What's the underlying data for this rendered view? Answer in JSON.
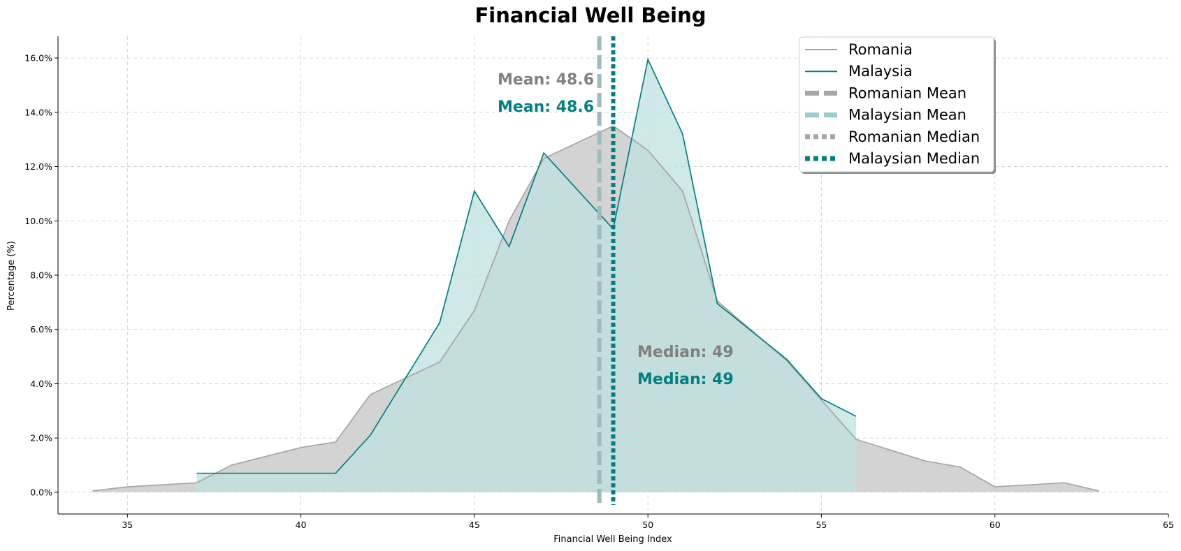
{
  "chart_data": {
    "type": "area",
    "title": "Financial Well Being",
    "xlabel": "Financial Well Being Index",
    "ylabel": "Percentage (%)",
    "xlim": [
      33,
      65
    ],
    "ylim": [
      -0.8,
      16.8
    ],
    "x_ticks": [
      35,
      40,
      45,
      50,
      55,
      60,
      65
    ],
    "y_ticks": [
      0,
      2,
      4,
      6,
      8,
      10,
      12,
      14,
      16
    ],
    "y_tick_format": "percent_1dp",
    "grid": true,
    "legend_placement": "top-right",
    "series": [
      {
        "name": "Romania",
        "color": "#a6a6a6",
        "fill": "#d3d3d3",
        "x": [
          34,
          35,
          37,
          38,
          40,
          41,
          42,
          44,
          45,
          46,
          47,
          49,
          50,
          51,
          52,
          54,
          55,
          56,
          58,
          59,
          60,
          62,
          63
        ],
        "y": [
          0.05,
          0.2,
          0.35,
          1.0,
          1.65,
          1.85,
          3.6,
          4.8,
          6.7,
          10.0,
          12.3,
          13.5,
          12.6,
          11.1,
          7.05,
          4.85,
          3.4,
          1.95,
          1.15,
          0.93,
          0.2,
          0.35,
          0.05
        ]
      },
      {
        "name": "Malaysia",
        "color": "#008080",
        "fill": "#bfe0e0",
        "x": [
          37,
          41,
          42,
          44,
          45,
          46,
          47,
          49,
          50,
          51,
          52,
          54,
          55,
          56
        ],
        "y": [
          0.7,
          0.7,
          2.1,
          6.25,
          11.1,
          9.05,
          12.5,
          9.7,
          15.95,
          13.2,
          6.95,
          4.9,
          3.45,
          2.8
        ]
      }
    ],
    "reference_lines": [
      {
        "name": "Romanian Mean",
        "x": 48.6,
        "style": "dashed",
        "color": "#a6a6a6"
      },
      {
        "name": "Malaysian Mean",
        "x": 48.6,
        "style": "dashed",
        "color": "#99cccc"
      },
      {
        "name": "Romanian Median",
        "x": 49,
        "style": "dotted",
        "color": "#a6a6a6"
      },
      {
        "name": "Malaysian Median",
        "x": 49,
        "style": "dotted",
        "color": "#008080"
      }
    ],
    "annotations": {
      "romanian_mean": "Mean: 48.6",
      "malaysian_mean": "Mean: 48.6",
      "romanian_median": "Median: 49",
      "malaysian_median": "Median: 49"
    },
    "annotation_colors": {
      "romanian": "#808080",
      "malaysian": "#008080"
    }
  }
}
